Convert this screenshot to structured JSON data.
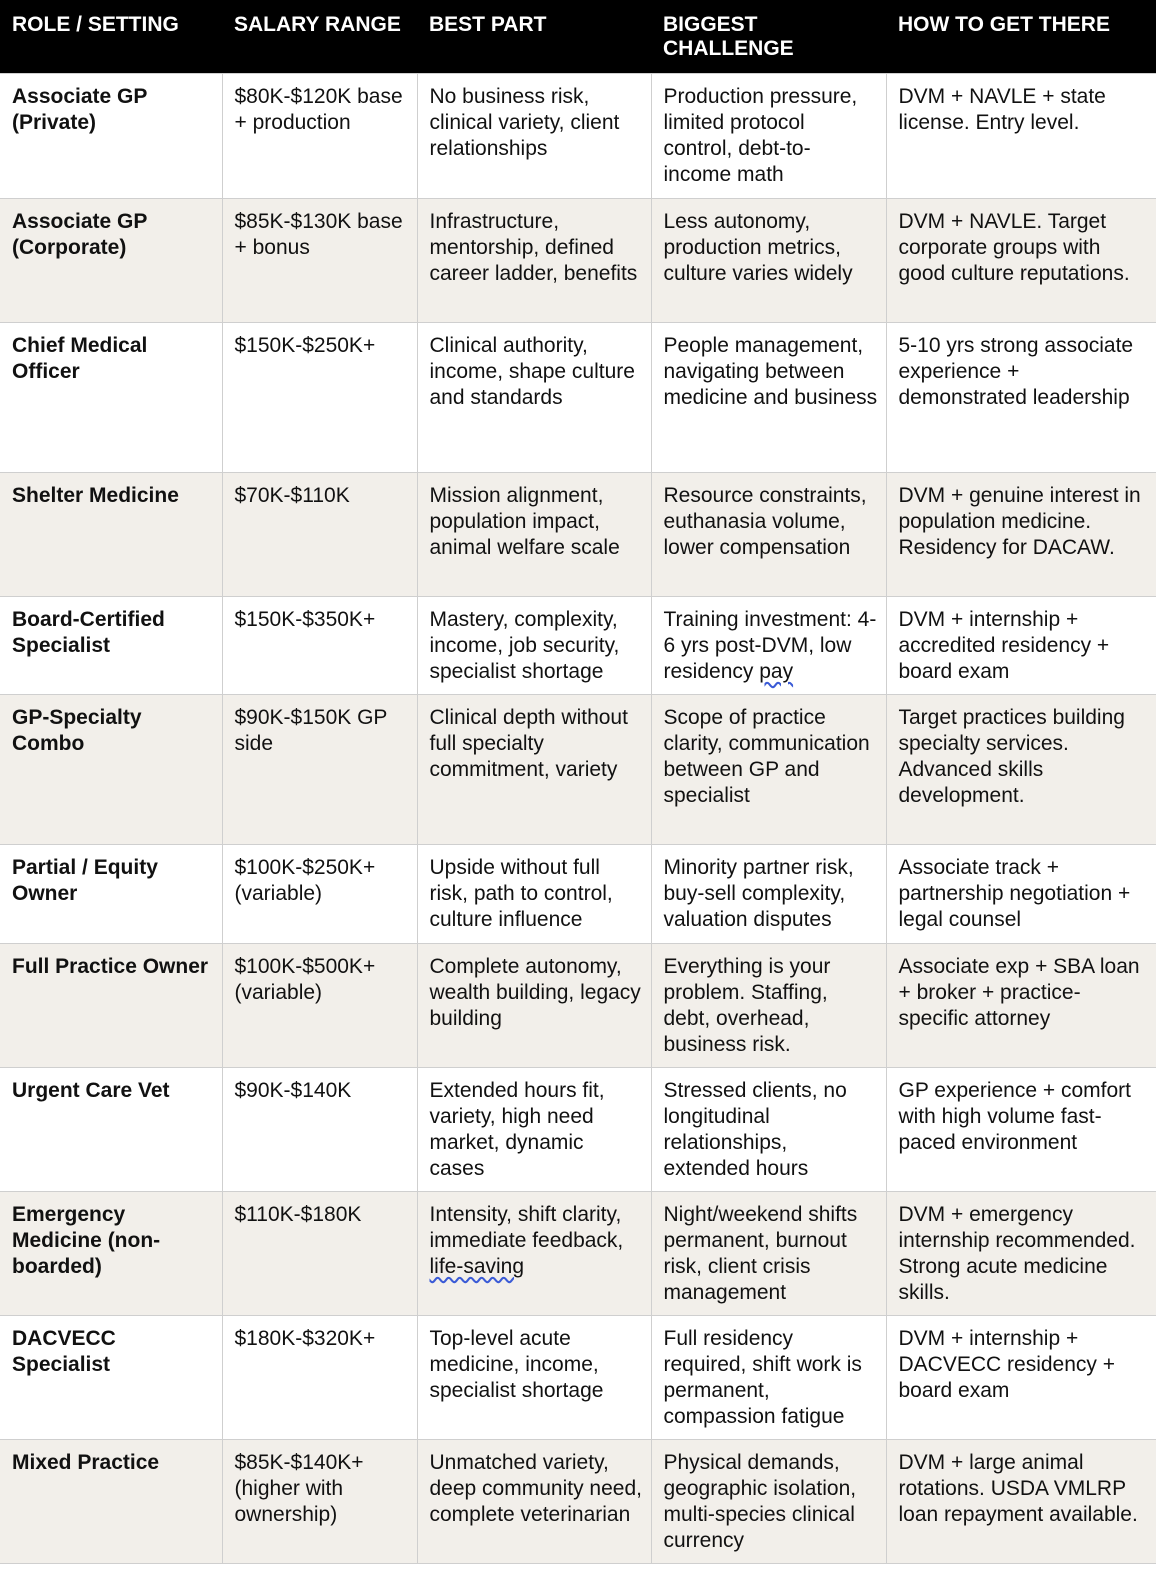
{
  "headers": [
    "ROLE / SETTING",
    "SALARY RANGE",
    "BEST PART",
    "BIGGEST CHALLENGE",
    "HOW TO GET THERE"
  ],
  "rows": [
    {
      "role": "Associate GP (Private)",
      "salary": "$80K-$120K base + production",
      "best": "No business risk, clinical variety, client relationships",
      "challenge": "Production pressure, limited protocol control, debt-to-income math",
      "path": "DVM + NAVLE + state license. Entry level."
    },
    {
      "role": "Associate GP (Corporate)",
      "salary": "$85K-$130K base + bonus",
      "best": "Infrastructure, mentorship, defined career ladder, benefits",
      "challenge": "Less autonomy, production metrics, culture varies widely",
      "path": "DVM + NAVLE. Target corporate groups with good culture reputations."
    },
    {
      "role": "Chief Medical Officer",
      "salary": "$150K-$250K+",
      "best": "Clinical authority, income, shape culture and standards",
      "challenge": "People management, navigating between medicine and business",
      "path": "5-10 yrs strong associate experience + demonstrated leadership"
    },
    {
      "role": "Shelter Medicine",
      "salary": "$70K-$110K",
      "best": "Mission alignment, population impact, animal welfare scale",
      "challenge": "Resource constraints, euthanasia volume, lower compensation",
      "path": "DVM + genuine interest in population medicine. Residency for DACAW."
    },
    {
      "role": "Board-Certified Specialist",
      "salary": "$150K-$350K+",
      "best": "Mastery, complexity, income, job security, specialist shortage",
      "challenge_pre": "Training investment: 4-6 yrs post-DVM, low residency ",
      "challenge_flag": "pay",
      "path": "DVM + internship + accredited residency + board exam"
    },
    {
      "role": "GP-Specialty Combo",
      "salary": "$90K-$150K GP side",
      "best": "Clinical depth without full specialty commitment, variety",
      "challenge": "Scope of practice clarity, communication between GP and specialist",
      "path": "Target practices building specialty services. Advanced skills development."
    },
    {
      "role": "Partial / Equity Owner",
      "salary": "$100K-$250K+ (variable)",
      "best": "Upside without full risk, path to control, culture influence",
      "challenge": "Minority partner risk, buy-sell complexity, valuation disputes",
      "path": "Associate track + partnership negotiation + legal counsel"
    },
    {
      "role": "Full Practice Owner",
      "salary": "$100K-$500K+ (variable)",
      "best": "Complete autonomy, wealth building, legacy building",
      "challenge": "Everything is your problem. Staffing, debt, overhead, business risk.",
      "path": "Associate exp + SBA loan + broker + practice-specific attorney"
    },
    {
      "role": "Urgent Care Vet",
      "salary": "$90K-$140K",
      "best": "Extended hours fit, variety, high need market, dynamic cases",
      "challenge": "Stressed clients, no longitudinal relationships, extended hours",
      "path": "GP experience + comfort with high volume fast-paced environment"
    },
    {
      "role": "Emergency Medicine (non-boarded)",
      "salary": "$110K-$180K",
      "best_pre": "Intensity, shift clarity, immediate feedback, ",
      "best_flag": "life-saving",
      "challenge": "Night/weekend shifts permanent, burnout risk, client crisis management",
      "path": "DVM + emergency internship recommended. Strong acute medicine skills."
    },
    {
      "role": "DACVECC Specialist",
      "salary": "$180K-$320K+",
      "best": "Top-level acute medicine, income, specialist shortage",
      "challenge": "Full residency required, shift work is permanent, compassion fatigue",
      "path": "DVM + internship + DACVECC residency + board exam"
    },
    {
      "role": "Mixed Practice",
      "salary": "$85K-$140K+ (higher with ownership)",
      "best": "Unmatched variety, deep community need, complete veterinarian",
      "challenge": "Physical demands, geographic isolation, multi-species clinical currency",
      "path": "DVM + large animal rotations. USDA VMLRP loan repayment available."
    }
  ]
}
